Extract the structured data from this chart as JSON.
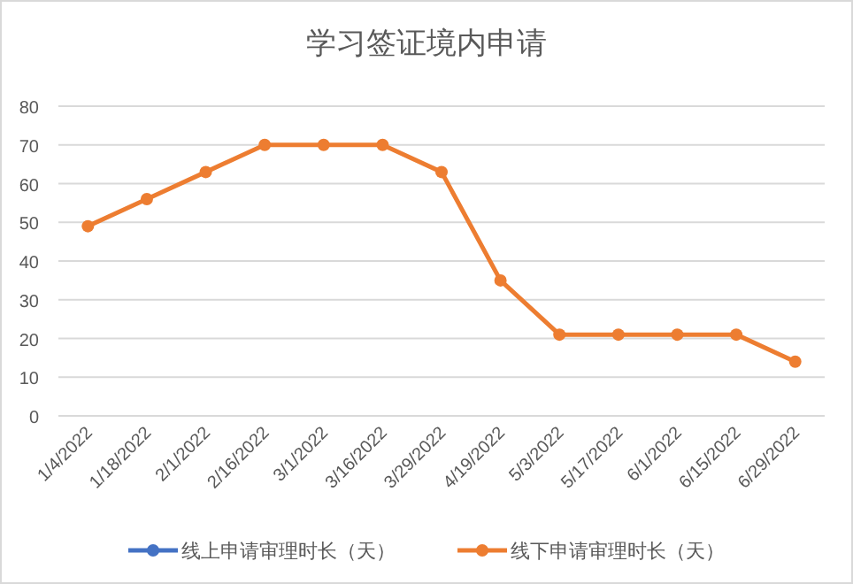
{
  "chart_data": {
    "type": "line",
    "title": "学习签证境内申请",
    "categories": [
      "1/4/2022",
      "1/18/2022",
      "2/1/2022",
      "2/16/2022",
      "3/1/2022",
      "3/16/2022",
      "3/29/2022",
      "4/19/2022",
      "5/3/2022",
      "5/17/2022",
      "6/1/2022",
      "6/15/2022",
      "6/29/2022"
    ],
    "series": [
      {
        "name": "线上申请审理时长（天）",
        "color": "#4472c4",
        "values": [
          null,
          null,
          null,
          null,
          null,
          null,
          null,
          null,
          null,
          null,
          null,
          null,
          null
        ]
      },
      {
        "name": "线下申请审理时长（天）",
        "color": "#ed7d31",
        "values": [
          49,
          56,
          63,
          70,
          70,
          70,
          63,
          35,
          21,
          21,
          21,
          21,
          14
        ]
      }
    ],
    "ylim": [
      0,
      80
    ],
    "yticks": [
      0,
      10,
      20,
      30,
      40,
      50,
      60,
      70,
      80
    ],
    "grid": "y",
    "legend": "bottom",
    "marker": "circle",
    "line_style": "solid"
  }
}
